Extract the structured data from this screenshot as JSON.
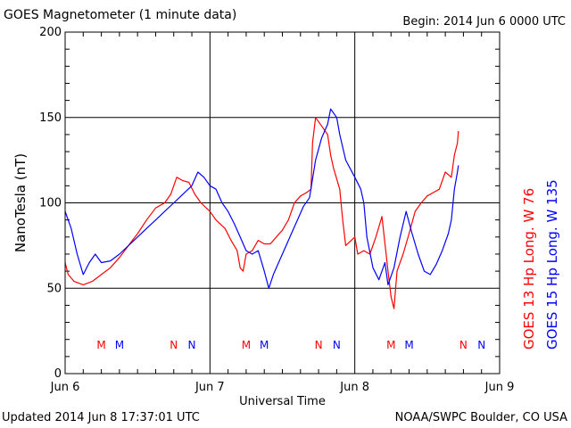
{
  "header": {
    "title": "GOES Magnetometer (1 minute data)",
    "begin": "Begin:  2014 Jun 6 0000 UTC"
  },
  "footer": {
    "updated": "Updated 2014 Jun  8 17:37:01 UTC",
    "source": "NOAA/SWPC Boulder, CO USA"
  },
  "colors": {
    "goes13": "#ff0000",
    "goes15": "#0000ff",
    "axis": "#000000"
  },
  "chart_data": {
    "type": "line",
    "title": "GOES Magnetometer (1 minute data)",
    "xlabel": "Universal Time",
    "ylabel": "NanoTesla (nT)",
    "xlim": [
      "2014-06-06T00:00",
      "2014-06-09T00:00"
    ],
    "ylim": [
      0,
      200
    ],
    "y_ticks": [
      0,
      50,
      100,
      150,
      200
    ],
    "x_ticks": [
      {
        "t": "2014-06-06T00:00",
        "label": "Jun 6"
      },
      {
        "t": "2014-06-07T00:00",
        "label": "Jun 7"
      },
      {
        "t": "2014-06-08T00:00",
        "label": "Jun 8"
      },
      {
        "t": "2014-06-09T00:00",
        "label": "Jun 9"
      }
    ],
    "grid": true,
    "series": [
      {
        "name": "GOES 13 Hp  Long. W 76",
        "color": "#ff0000",
        "points": [
          [
            "2014-06-06T00:00",
            65
          ],
          [
            "2014-06-06T00:30",
            58
          ],
          [
            "2014-06-06T01:30",
            54
          ],
          [
            "2014-06-06T03:00",
            52
          ],
          [
            "2014-06-06T04:30",
            54
          ],
          [
            "2014-06-06T06:00",
            58
          ],
          [
            "2014-06-06T07:30",
            62
          ],
          [
            "2014-06-06T09:00",
            68
          ],
          [
            "2014-06-06T10:30",
            75
          ],
          [
            "2014-06-06T12:00",
            82
          ],
          [
            "2014-06-06T13:30",
            90
          ],
          [
            "2014-06-06T15:00",
            97
          ],
          [
            "2014-06-06T16:30",
            100
          ],
          [
            "2014-06-06T17:30",
            105
          ],
          [
            "2014-06-06T18:30",
            115
          ],
          [
            "2014-06-06T19:30",
            113
          ],
          [
            "2014-06-06T20:30",
            112
          ],
          [
            "2014-06-06T21:30",
            105
          ],
          [
            "2014-06-06T22:30",
            100
          ],
          [
            "2014-06-07T00:00",
            95
          ],
          [
            "2014-06-07T01:00",
            90
          ],
          [
            "2014-06-07T02:30",
            85
          ],
          [
            "2014-06-07T03:30",
            78
          ],
          [
            "2014-06-07T04:30",
            72
          ],
          [
            "2014-06-07T05:00",
            62
          ],
          [
            "2014-06-07T05:30",
            60
          ],
          [
            "2014-06-07T06:00",
            70
          ],
          [
            "2014-06-07T07:00",
            72
          ],
          [
            "2014-06-07T08:00",
            78
          ],
          [
            "2014-06-07T09:00",
            76
          ],
          [
            "2014-06-07T10:00",
            76
          ],
          [
            "2014-06-07T11:00",
            80
          ],
          [
            "2014-06-07T12:00",
            84
          ],
          [
            "2014-06-07T13:00",
            90
          ],
          [
            "2014-06-07T14:00",
            100
          ],
          [
            "2014-06-07T15:00",
            104
          ],
          [
            "2014-06-07T16:00",
            106
          ],
          [
            "2014-06-07T16:45",
            108
          ],
          [
            "2014-06-07T17:00",
            135
          ],
          [
            "2014-06-07T17:30",
            150
          ],
          [
            "2014-06-07T18:30",
            145
          ],
          [
            "2014-06-07T19:30",
            140
          ],
          [
            "2014-06-07T20:00",
            128
          ],
          [
            "2014-06-07T20:30",
            120
          ],
          [
            "2014-06-07T21:30",
            108
          ],
          [
            "2014-06-07T22:00",
            90
          ],
          [
            "2014-06-07T22:30",
            75
          ],
          [
            "2014-06-08T00:00",
            80
          ],
          [
            "2014-06-08T00:30",
            70
          ],
          [
            "2014-06-08T01:30",
            72
          ],
          [
            "2014-06-08T02:30",
            70
          ],
          [
            "2014-06-08T03:30",
            80
          ],
          [
            "2014-06-08T04:30",
            92
          ],
          [
            "2014-06-08T05:30",
            60
          ],
          [
            "2014-06-08T06:00",
            45
          ],
          [
            "2014-06-08T06:30",
            38
          ],
          [
            "2014-06-08T07:00",
            60
          ],
          [
            "2014-06-08T08:00",
            70
          ],
          [
            "2014-06-08T09:00",
            82
          ],
          [
            "2014-06-08T10:00",
            95
          ],
          [
            "2014-06-08T11:00",
            100
          ],
          [
            "2014-06-08T12:00",
            104
          ],
          [
            "2014-06-08T13:00",
            106
          ],
          [
            "2014-06-08T14:00",
            108
          ],
          [
            "2014-06-08T15:00",
            118
          ],
          [
            "2014-06-08T16:00",
            115
          ],
          [
            "2014-06-08T16:30",
            128
          ],
          [
            "2014-06-08T17:00",
            135
          ],
          [
            "2014-06-08T17:10",
            142
          ]
        ]
      },
      {
        "name": "GOES 15 Hp  Long. W 135",
        "color": "#0000ff",
        "points": [
          [
            "2014-06-06T00:00",
            95
          ],
          [
            "2014-06-06T01:00",
            85
          ],
          [
            "2014-06-06T02:00",
            70
          ],
          [
            "2014-06-06T03:00",
            58
          ],
          [
            "2014-06-06T04:00",
            65
          ],
          [
            "2014-06-06T05:00",
            70
          ],
          [
            "2014-06-06T06:00",
            65
          ],
          [
            "2014-06-06T07:30",
            66
          ],
          [
            "2014-06-06T09:00",
            70
          ],
          [
            "2014-06-06T10:30",
            75
          ],
          [
            "2014-06-06T12:00",
            80
          ],
          [
            "2014-06-06T13:30",
            85
          ],
          [
            "2014-06-06T15:00",
            90
          ],
          [
            "2014-06-06T16:30",
            95
          ],
          [
            "2014-06-06T18:00",
            100
          ],
          [
            "2014-06-06T19:30",
            105
          ],
          [
            "2014-06-06T21:00",
            110
          ],
          [
            "2014-06-06T22:00",
            118
          ],
          [
            "2014-06-06T23:00",
            115
          ],
          [
            "2014-06-07T00:00",
            110
          ],
          [
            "2014-06-07T01:00",
            108
          ],
          [
            "2014-06-07T02:00",
            100
          ],
          [
            "2014-06-07T03:00",
            95
          ],
          [
            "2014-06-07T04:00",
            88
          ],
          [
            "2014-06-07T05:00",
            80
          ],
          [
            "2014-06-07T06:00",
            72
          ],
          [
            "2014-06-07T07:00",
            70
          ],
          [
            "2014-06-07T08:00",
            72
          ],
          [
            "2014-06-07T09:00",
            60
          ],
          [
            "2014-06-07T09:45",
            50
          ],
          [
            "2014-06-07T10:30",
            58
          ],
          [
            "2014-06-07T11:30",
            66
          ],
          [
            "2014-06-07T12:30",
            74
          ],
          [
            "2014-06-07T13:30",
            82
          ],
          [
            "2014-06-07T14:30",
            90
          ],
          [
            "2014-06-07T15:30",
            98
          ],
          [
            "2014-06-07T16:30",
            103
          ],
          [
            "2014-06-07T17:30",
            125
          ],
          [
            "2014-06-07T18:30",
            138
          ],
          [
            "2014-06-07T19:30",
            146
          ],
          [
            "2014-06-07T20:00",
            155
          ],
          [
            "2014-06-07T21:00",
            150
          ],
          [
            "2014-06-07T21:30",
            140
          ],
          [
            "2014-06-07T22:30",
            125
          ],
          [
            "2014-06-08T00:00",
            115
          ],
          [
            "2014-06-08T01:00",
            108
          ],
          [
            "2014-06-08T01:30",
            100
          ],
          [
            "2014-06-08T02:00",
            80
          ],
          [
            "2014-06-08T03:00",
            62
          ],
          [
            "2014-06-08T04:00",
            55
          ],
          [
            "2014-06-08T05:00",
            65
          ],
          [
            "2014-06-08T05:30",
            52
          ],
          [
            "2014-06-08T06:30",
            62
          ],
          [
            "2014-06-08T07:30",
            80
          ],
          [
            "2014-06-08T08:30",
            95
          ],
          [
            "2014-06-08T09:30",
            82
          ],
          [
            "2014-06-08T10:30",
            70
          ],
          [
            "2014-06-08T11:30",
            60
          ],
          [
            "2014-06-08T12:30",
            58
          ],
          [
            "2014-06-08T13:30",
            64
          ],
          [
            "2014-06-08T14:30",
            72
          ],
          [
            "2014-06-08T15:30",
            82
          ],
          [
            "2014-06-08T16:00",
            90
          ],
          [
            "2014-06-08T16:30",
            108
          ],
          [
            "2014-06-08T17:00",
            118
          ],
          [
            "2014-06-08T17:10",
            122
          ]
        ]
      }
    ],
    "markers": [
      {
        "label": "M",
        "t": "2014-06-06T06:00",
        "color": "#ff0000"
      },
      {
        "label": "M",
        "t": "2014-06-06T09:00",
        "color": "#0000ff"
      },
      {
        "label": "N",
        "t": "2014-06-06T18:00",
        "color": "#ff0000"
      },
      {
        "label": "N",
        "t": "2014-06-06T21:00",
        "color": "#0000ff"
      },
      {
        "label": "M",
        "t": "2014-06-07T06:00",
        "color": "#ff0000"
      },
      {
        "label": "M",
        "t": "2014-06-07T09:00",
        "color": "#0000ff"
      },
      {
        "label": "N",
        "t": "2014-06-07T18:00",
        "color": "#ff0000"
      },
      {
        "label": "N",
        "t": "2014-06-07T21:00",
        "color": "#0000ff"
      },
      {
        "label": "M",
        "t": "2014-06-08T06:00",
        "color": "#ff0000"
      },
      {
        "label": "M",
        "t": "2014-06-08T09:00",
        "color": "#0000ff"
      },
      {
        "label": "N",
        "t": "2014-06-08T18:00",
        "color": "#ff0000"
      },
      {
        "label": "N",
        "t": "2014-06-08T21:00",
        "color": "#0000ff"
      }
    ],
    "legend_placement": "right"
  }
}
